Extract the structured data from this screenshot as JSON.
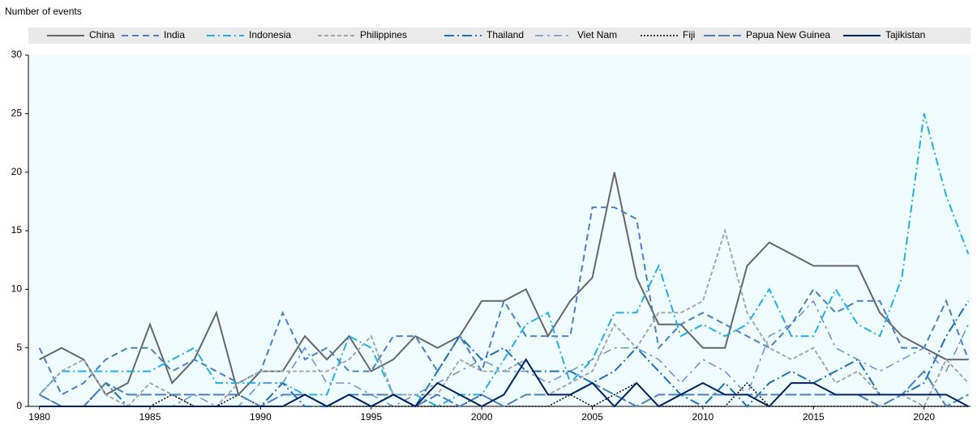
{
  "chart_data": {
    "type": "line",
    "y_axis_label": "Number of events",
    "x": [
      1980,
      1981,
      1982,
      1983,
      1984,
      1985,
      1986,
      1987,
      1988,
      1989,
      1990,
      1991,
      1992,
      1993,
      1994,
      1995,
      1996,
      1997,
      1998,
      1999,
      2000,
      2001,
      2002,
      2003,
      2004,
      2005,
      2006,
      2007,
      2008,
      2009,
      2010,
      2011,
      2012,
      2013,
      2014,
      2015,
      2016,
      2017,
      2018,
      2019,
      2020,
      2021,
      2022
    ],
    "series": [
      {
        "name": "China",
        "color": "#666666",
        "values": [
          4,
          5,
          4,
          1,
          2,
          7,
          2,
          4,
          8,
          1,
          3,
          3,
          6,
          4,
          6,
          3,
          4,
          6,
          5,
          6,
          9,
          9,
          10,
          6,
          9,
          11,
          20,
          11,
          7,
          7,
          5,
          5,
          12,
          14,
          13,
          12,
          12,
          12,
          8,
          6,
          5,
          4,
          4
        ]
      },
      {
        "name": "India",
        "color": "#4a7fc1",
        "values": [
          5,
          1,
          2,
          4,
          5,
          5,
          3,
          4,
          3,
          2,
          3,
          8,
          4,
          5,
          3,
          3,
          6,
          6,
          3,
          6,
          3,
          9,
          6,
          6,
          6,
          17,
          17,
          16,
          5,
          7,
          8,
          7,
          6,
          5,
          7,
          10,
          8,
          9,
          9,
          5,
          5,
          9,
          4
        ]
      },
      {
        "name": "Indonesia",
        "color": "#21b0e6",
        "values": [
          1,
          3,
          3,
          3,
          3,
          3,
          4,
          5,
          2,
          2,
          2,
          2,
          1,
          1,
          6,
          5,
          1,
          1,
          0,
          1,
          1,
          4,
          7,
          8,
          2,
          4,
          8,
          8,
          12,
          6,
          7,
          6,
          7,
          10,
          6,
          6,
          10,
          7,
          6,
          11,
          25,
          18,
          13
        ]
      },
      {
        "name": "Philippines",
        "color": "#a6a6a6",
        "values": [
          1,
          3,
          4,
          1,
          0,
          2,
          1,
          0,
          0,
          2,
          3,
          3,
          3,
          3,
          4,
          6,
          1,
          1,
          1,
          4,
          3,
          3,
          4,
          1,
          2,
          3,
          7,
          5,
          8,
          8,
          9,
          15,
          8,
          5,
          4,
          5,
          2,
          3,
          1,
          1,
          0,
          4,
          2
        ]
      },
      {
        "name": "Thailand",
        "color": "#1a6fb5",
        "values": [
          0,
          0,
          0,
          2,
          0,
          0,
          0,
          0,
          0,
          0,
          0,
          2,
          0,
          0,
          1,
          0,
          1,
          0,
          3,
          6,
          4,
          5,
          3,
          3,
          3,
          2,
          3,
          5,
          3,
          1,
          0,
          2,
          0,
          2,
          3,
          2,
          3,
          4,
          1,
          1,
          2,
          6,
          9
        ]
      },
      {
        "name": "Viet Nam",
        "color": "#6a8fd0",
        "values": [
          1,
          0,
          0,
          0,
          0,
          0,
          0,
          1,
          0,
          0,
          2,
          2,
          5,
          2,
          2,
          1,
          0,
          1,
          2,
          3,
          4,
          3,
          3,
          2,
          3,
          4,
          5,
          5,
          4,
          2,
          4,
          3,
          1,
          6,
          7,
          9,
          5,
          4,
          3,
          4,
          5,
          3,
          7
        ]
      },
      {
        "name": "Fiji",
        "color": "#000000",
        "values": [
          0,
          0,
          0,
          0,
          0,
          0,
          1,
          0,
          0,
          1,
          0,
          0,
          1,
          0,
          0,
          0,
          0,
          0,
          0,
          0,
          1,
          0,
          0,
          0,
          1,
          0,
          1,
          2,
          0,
          0,
          0,
          0,
          2,
          0,
          0,
          0,
          0,
          0,
          0,
          0,
          0,
          0,
          0
        ]
      },
      {
        "name": "Papua New Guinea",
        "color": "#4d80b8",
        "values": [
          1,
          0,
          0,
          2,
          1,
          1,
          1,
          1,
          1,
          1,
          0,
          1,
          1,
          0,
          1,
          1,
          1,
          0,
          1,
          0,
          1,
          0,
          1,
          1,
          1,
          2,
          1,
          0,
          1,
          1,
          1,
          1,
          1,
          1,
          1,
          1,
          1,
          1,
          0,
          1,
          3,
          0,
          1
        ]
      },
      {
        "name": "Tajikistan",
        "color": "#002060",
        "values": [
          0,
          0,
          0,
          0,
          0,
          0,
          0,
          0,
          0,
          0,
          0,
          0,
          1,
          0,
          1,
          0,
          1,
          0,
          2,
          1,
          0,
          1,
          4,
          1,
          1,
          2,
          0,
          2,
          0,
          1,
          2,
          1,
          1,
          0,
          2,
          2,
          1,
          1,
          1,
          1,
          1,
          1,
          0
        ]
      }
    ],
    "xlim": [
      1979.5,
      2022.1
    ],
    "xticks": [
      1980,
      1985,
      1990,
      1995,
      2000,
      2005,
      2010,
      2015,
      2020
    ],
    "ylim": [
      0,
      30
    ],
    "yticks": [
      0,
      5,
      10,
      15,
      20,
      25,
      30
    ]
  }
}
